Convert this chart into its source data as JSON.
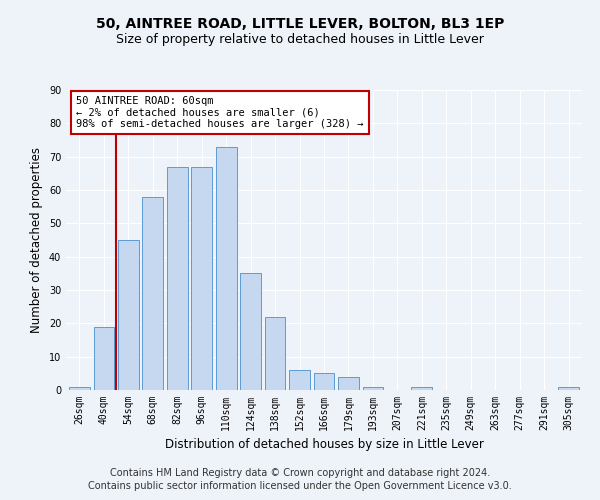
{
  "title": "50, AINTREE ROAD, LITTLE LEVER, BOLTON, BL3 1EP",
  "subtitle": "Size of property relative to detached houses in Little Lever",
  "xlabel": "Distribution of detached houses by size in Little Lever",
  "ylabel": "Number of detached properties",
  "categories": [
    "26sqm",
    "40sqm",
    "54sqm",
    "68sqm",
    "82sqm",
    "96sqm",
    "110sqm",
    "124sqm",
    "138sqm",
    "152sqm",
    "166sqm",
    "179sqm",
    "193sqm",
    "207sqm",
    "221sqm",
    "235sqm",
    "249sqm",
    "263sqm",
    "277sqm",
    "291sqm",
    "305sqm"
  ],
  "values": [
    1,
    19,
    45,
    58,
    67,
    67,
    73,
    35,
    22,
    6,
    5,
    4,
    1,
    0,
    1,
    0,
    0,
    0,
    0,
    0,
    1
  ],
  "bar_color": "#c5d8f0",
  "bar_edge_color": "#5b9bd5",
  "vline_color": "#c00000",
  "annotation_text": "50 AINTREE ROAD: 60sqm\n← 2% of detached houses are smaller (6)\n98% of semi-detached houses are larger (328) →",
  "annotation_box_color": "#ffffff",
  "annotation_box_edge": "#c00000",
  "ylim": [
    0,
    90
  ],
  "yticks": [
    0,
    10,
    20,
    30,
    40,
    50,
    60,
    70,
    80,
    90
  ],
  "footer1": "Contains HM Land Registry data © Crown copyright and database right 2024.",
  "footer2": "Contains public sector information licensed under the Open Government Licence v3.0.",
  "bg_color": "#eef2f9",
  "plot_bg_color": "#eef2f9",
  "title_fontsize": 10,
  "subtitle_fontsize": 9,
  "tick_fontsize": 7,
  "ylabel_fontsize": 8.5,
  "xlabel_fontsize": 8.5,
  "footer_fontsize": 7,
  "annot_fontsize": 7.5
}
